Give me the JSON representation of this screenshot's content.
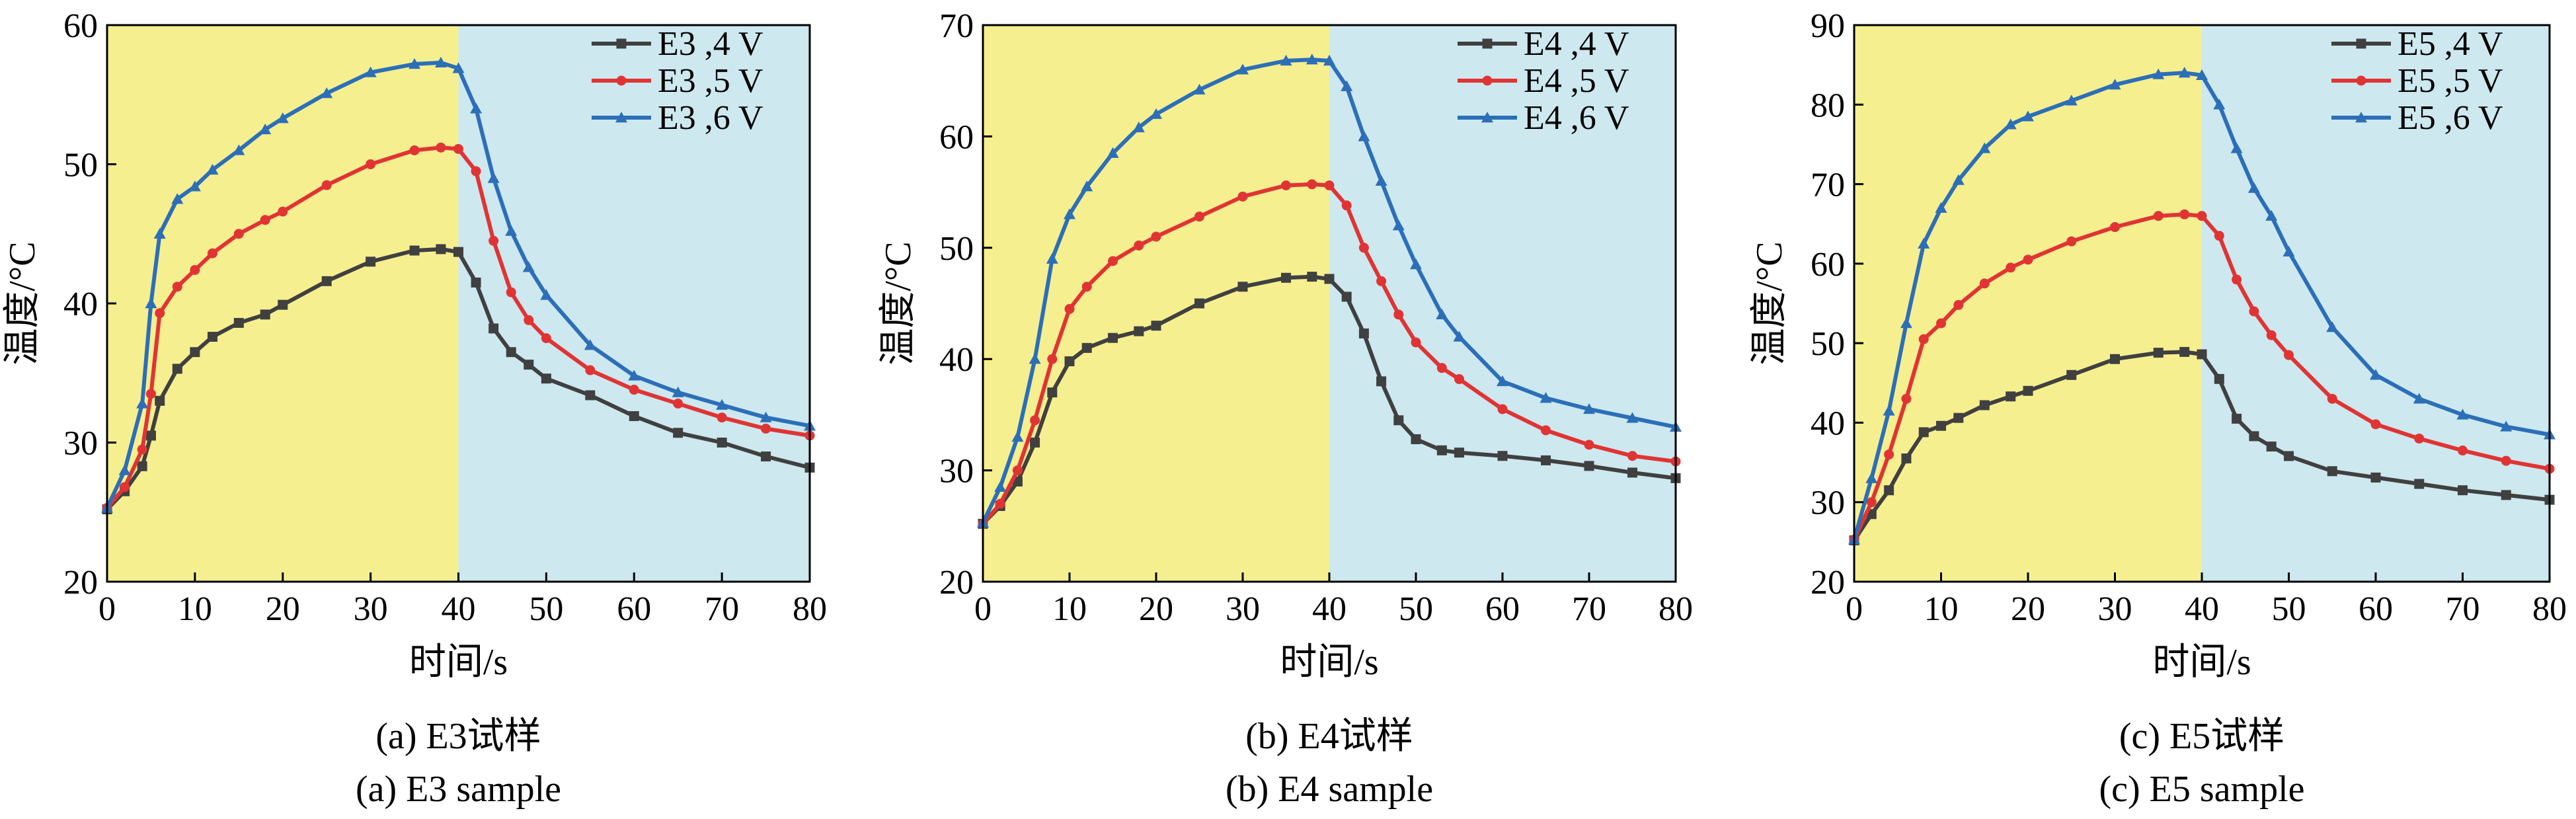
{
  "figure": {
    "panels": [
      {
        "caption_cn": "(a) E3试样",
        "caption_en": "(a) E3 sample"
      },
      {
        "caption_cn": "(b) E4试样",
        "caption_en": "(b) E4 sample"
      },
      {
        "caption_cn": "(c) E5试样",
        "caption_en": "(c) E5 sample"
      }
    ]
  },
  "colors": {
    "heating_region": "#f5ef8f",
    "cooling_region": "#cde8ef",
    "series": [
      "#404040",
      "#e03434",
      "#2c6fb8"
    ]
  },
  "chart_data": [
    {
      "type": "line",
      "xlabel": "时间/s",
      "ylabel": "温度/°C",
      "xlim": [
        0,
        80
      ],
      "ylim": [
        20,
        60
      ],
      "xticks": [
        0,
        10,
        20,
        30,
        40,
        50,
        60,
        70,
        80
      ],
      "yticks": [
        20,
        30,
        40,
        50,
        60
      ],
      "grid": false,
      "legend_position": "top-right",
      "shaded_regions": [
        {
          "x_start": 0,
          "x_end": 40,
          "color": "#f5ef8f"
        },
        {
          "x_start": 40,
          "x_end": 80,
          "color": "#cde8ef"
        }
      ],
      "x": [
        0,
        2,
        4,
        5,
        6,
        8,
        10,
        12,
        15,
        18,
        20,
        25,
        30,
        35,
        38,
        40,
        42,
        44,
        46,
        48,
        50,
        55,
        60,
        65,
        70,
        75,
        80
      ],
      "series": [
        {
          "name": "E3 ,4 V",
          "marker": "square",
          "values": [
            25.2,
            26.5,
            28.3,
            30.5,
            33.0,
            35.3,
            36.5,
            37.6,
            38.6,
            39.2,
            39.9,
            41.6,
            43.0,
            43.8,
            43.9,
            43.7,
            41.5,
            38.2,
            36.5,
            35.6,
            34.6,
            33.4,
            31.9,
            30.7,
            30.0,
            29.0,
            28.2
          ]
        },
        {
          "name": "E3 ,5 V",
          "marker": "circle",
          "values": [
            25.3,
            26.8,
            29.5,
            33.5,
            39.3,
            41.2,
            42.4,
            43.6,
            45.0,
            46.0,
            46.6,
            48.5,
            50.0,
            51.0,
            51.2,
            51.1,
            49.5,
            44.5,
            40.8,
            38.8,
            37.5,
            35.2,
            33.8,
            32.8,
            31.8,
            31.0,
            30.5
          ]
        },
        {
          "name": "E3 ,6 V",
          "marker": "triangle",
          "values": [
            25.3,
            28.0,
            32.8,
            40.0,
            45.0,
            47.5,
            48.4,
            49.6,
            51.0,
            52.5,
            53.3,
            55.1,
            56.6,
            57.2,
            57.3,
            56.9,
            54.0,
            49.0,
            45.2,
            42.6,
            40.6,
            37.0,
            34.8,
            33.6,
            32.7,
            31.8,
            31.2
          ]
        }
      ]
    },
    {
      "type": "line",
      "xlabel": "时间/s",
      "ylabel": "温度/°C",
      "xlim": [
        0,
        80
      ],
      "ylim": [
        20,
        70
      ],
      "xticks": [
        0,
        10,
        20,
        30,
        40,
        50,
        60,
        70,
        80
      ],
      "yticks": [
        20,
        30,
        40,
        50,
        60,
        70
      ],
      "grid": false,
      "legend_position": "top-right",
      "shaded_regions": [
        {
          "x_start": 0,
          "x_end": 40,
          "color": "#f5ef8f"
        },
        {
          "x_start": 40,
          "x_end": 80,
          "color": "#cde8ef"
        }
      ],
      "x": [
        0,
        2,
        4,
        6,
        8,
        10,
        12,
        15,
        18,
        20,
        25,
        30,
        35,
        38,
        40,
        42,
        44,
        46,
        48,
        50,
        53,
        55,
        60,
        65,
        70,
        75,
        80
      ],
      "series": [
        {
          "name": "E4 ,4 V",
          "marker": "square",
          "values": [
            25.2,
            26.8,
            29.0,
            32.5,
            37.0,
            39.8,
            41.0,
            41.9,
            42.5,
            43.0,
            45.0,
            46.5,
            47.3,
            47.4,
            47.2,
            45.6,
            42.3,
            38.0,
            34.5,
            32.8,
            31.8,
            31.6,
            31.3,
            30.9,
            30.4,
            29.8,
            29.3
          ]
        },
        {
          "name": "E4 ,5 V",
          "marker": "circle",
          "values": [
            25.2,
            27.0,
            30.0,
            34.5,
            40.0,
            44.5,
            46.5,
            48.8,
            50.2,
            51.0,
            52.8,
            54.6,
            55.6,
            55.7,
            55.6,
            53.8,
            50.0,
            47.0,
            44.0,
            41.5,
            39.2,
            38.2,
            35.5,
            33.6,
            32.3,
            31.3,
            30.8
          ]
        },
        {
          "name": "E4 ,6 V",
          "marker": "triangle",
          "values": [
            25.3,
            28.5,
            33.0,
            40.0,
            49.0,
            53.0,
            55.5,
            58.5,
            60.8,
            62.0,
            64.2,
            66.0,
            66.8,
            66.9,
            66.8,
            64.5,
            60.0,
            56.0,
            52.0,
            48.5,
            44.0,
            42.0,
            38.0,
            36.5,
            35.5,
            34.7,
            33.9
          ]
        }
      ]
    },
    {
      "type": "line",
      "xlabel": "时间/s",
      "ylabel": "温度/°C",
      "xlim": [
        0,
        80
      ],
      "ylim": [
        20,
        90
      ],
      "xticks": [
        0,
        10,
        20,
        30,
        40,
        50,
        60,
        70,
        80
      ],
      "yticks": [
        20,
        30,
        40,
        50,
        60,
        70,
        80,
        90
      ],
      "grid": false,
      "legend_position": "top-right",
      "shaded_regions": [
        {
          "x_start": 0,
          "x_end": 40,
          "color": "#f5ef8f"
        },
        {
          "x_start": 40,
          "x_end": 80,
          "color": "#cde8ef"
        }
      ],
      "x": [
        0,
        2,
        4,
        6,
        8,
        10,
        12,
        15,
        18,
        20,
        25,
        30,
        35,
        38,
        40,
        42,
        44,
        46,
        48,
        50,
        55,
        60,
        65,
        70,
        75,
        80
      ],
      "series": [
        {
          "name": "E5 ,4 V",
          "marker": "square",
          "values": [
            25.2,
            28.5,
            31.5,
            35.5,
            38.8,
            39.6,
            40.6,
            42.2,
            43.3,
            44.0,
            46.0,
            48.0,
            48.8,
            48.9,
            48.6,
            45.5,
            40.5,
            38.3,
            37.0,
            35.8,
            33.9,
            33.1,
            32.3,
            31.5,
            30.9,
            30.3
          ]
        },
        {
          "name": "E5 ,5 V",
          "marker": "circle",
          "values": [
            25.3,
            30.0,
            36.0,
            43.0,
            50.5,
            52.5,
            54.8,
            57.5,
            59.5,
            60.5,
            62.8,
            64.6,
            66.0,
            66.2,
            66.0,
            63.5,
            58.0,
            54.0,
            51.0,
            48.5,
            43.0,
            39.8,
            38.0,
            36.5,
            35.2,
            34.2
          ]
        },
        {
          "name": "E5 ,6 V",
          "marker": "triangle",
          "values": [
            25.3,
            33.0,
            41.5,
            52.5,
            62.5,
            67.0,
            70.5,
            74.5,
            77.5,
            78.5,
            80.5,
            82.5,
            83.8,
            84.0,
            83.7,
            80.0,
            74.5,
            69.5,
            66.0,
            61.5,
            52.0,
            46.0,
            43.0,
            41.0,
            39.5,
            38.5
          ]
        }
      ]
    }
  ]
}
